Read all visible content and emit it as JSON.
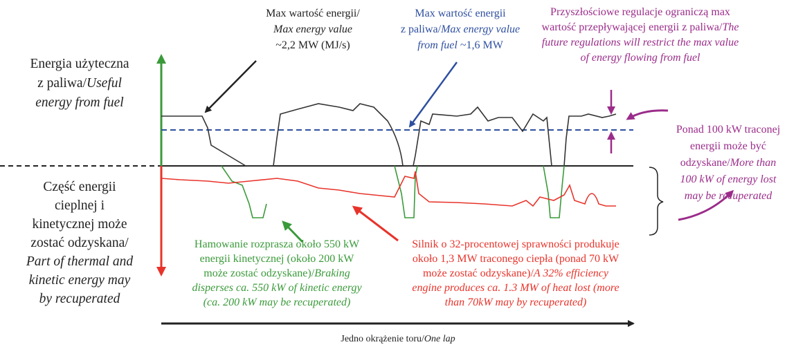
{
  "blocks": [
    {
      "color": "#222222",
      "lines": [
        [
          {
            "text": "Energia użyteczna",
            "italic": false
          }
        ],
        [
          {
            "text": "z paliwa/",
            "italic": false
          },
          {
            "text": "Useful",
            "italic": true
          }
        ],
        [
          {
            "text": "energy from fuel",
            "italic": true
          }
        ]
      ]
    },
    {
      "color": "#222222",
      "lines": [
        [
          {
            "text": "Część energii",
            "italic": false
          }
        ],
        [
          {
            "text": "cieplnej i",
            "italic": false
          }
        ],
        [
          {
            "text": "kinetycznej może",
            "italic": false
          }
        ],
        [
          {
            "text": "zostać odzyskana/",
            "italic": false
          }
        ],
        [
          {
            "text": "Part of thermal and",
            "italic": true
          }
        ],
        [
          {
            "text": "kinetic energy may",
            "italic": true
          }
        ],
        [
          {
            "text": "by recuperated",
            "italic": true
          }
        ]
      ]
    },
    {
      "color": "#222222",
      "lines": [
        [
          {
            "text": "Max wartość energii/",
            "italic": false
          }
        ],
        [
          {
            "text": "Max energy value",
            "italic": true
          }
        ],
        [
          {
            "text": "~2,2 MW (MJ/s)",
            "italic": false
          }
        ]
      ]
    },
    {
      "color": "#2e4fa0",
      "lines": [
        [
          {
            "text": "Max wartość energii",
            "italic": false
          }
        ],
        [
          {
            "text": "z paliwa/",
            "italic": false
          },
          {
            "text": "Max energy value",
            "italic": true
          }
        ],
        [
          {
            "text": "from fuel",
            "italic": true
          },
          {
            "text": " ~1,6 MW",
            "italic": false
          }
        ]
      ]
    },
    {
      "color": "#9b2c8a",
      "lines": [
        [
          {
            "text": "Przyszłościowe regulacje ograniczą max",
            "italic": false
          }
        ],
        [
          {
            "text": "wartość przepływającej energii z paliwa/",
            "italic": false
          },
          {
            "text": "The",
            "italic": true
          }
        ],
        [
          {
            "text": "future regulations will restrict the max value",
            "italic": true
          }
        ],
        [
          {
            "text": "of energy flowing from fuel",
            "italic": true
          }
        ]
      ]
    },
    {
      "color": "#9b2c8a",
      "lines": [
        [
          {
            "text": "Ponad 100 kW traconej",
            "italic": false
          }
        ],
        [
          {
            "text": "energii może być",
            "italic": false
          }
        ],
        [
          {
            "text": "odzyskane/",
            "italic": false
          },
          {
            "text": "More than",
            "italic": true
          }
        ],
        [
          {
            "text": "100 kW of energy lost",
            "italic": true
          }
        ],
        [
          {
            "text": "may be recuperated",
            "italic": true
          }
        ]
      ]
    },
    {
      "color": "#3a9a3a",
      "lines": [
        [
          {
            "text": "Hamowanie rozprasza około 550 kW",
            "italic": false
          }
        ],
        [
          {
            "text": "energii kinetycznej (około 200 kW",
            "italic": false
          }
        ],
        [
          {
            "text": "może zostać odzyskane)/",
            "italic": false
          },
          {
            "text": "Braking",
            "italic": true
          }
        ],
        [
          {
            "text": "disperses ca. 550 kW of kinetic energy",
            "italic": true
          }
        ],
        [
          {
            "text": "(ca. 200 kW may be recuperated)",
            "italic": true
          }
        ]
      ]
    },
    {
      "color": "#e8332a",
      "lines": [
        [
          {
            "text": "Silnik o 32-procentowej sprawności produkuje",
            "italic": false
          }
        ],
        [
          {
            "text": "około 1,3 MW traconego ciepła (ponad 70 kW",
            "italic": false
          }
        ],
        [
          {
            "text": "może zostać odzyskane)/",
            "italic": false
          },
          {
            "text": "A 32% efficiency",
            "italic": true
          }
        ],
        [
          {
            "text": "engine produces ca. 1.3 MW of heat lost (more",
            "italic": true
          }
        ],
        [
          {
            "text": "than 70kW may by recuperated)",
            "italic": true
          }
        ]
      ]
    },
    {
      "color": "#222222",
      "lines": [
        [
          {
            "text": "Jedno okrążenie toru/",
            "italic": false
          },
          {
            "text": "One lap",
            "italic": true
          }
        ]
      ]
    }
  ]
}
